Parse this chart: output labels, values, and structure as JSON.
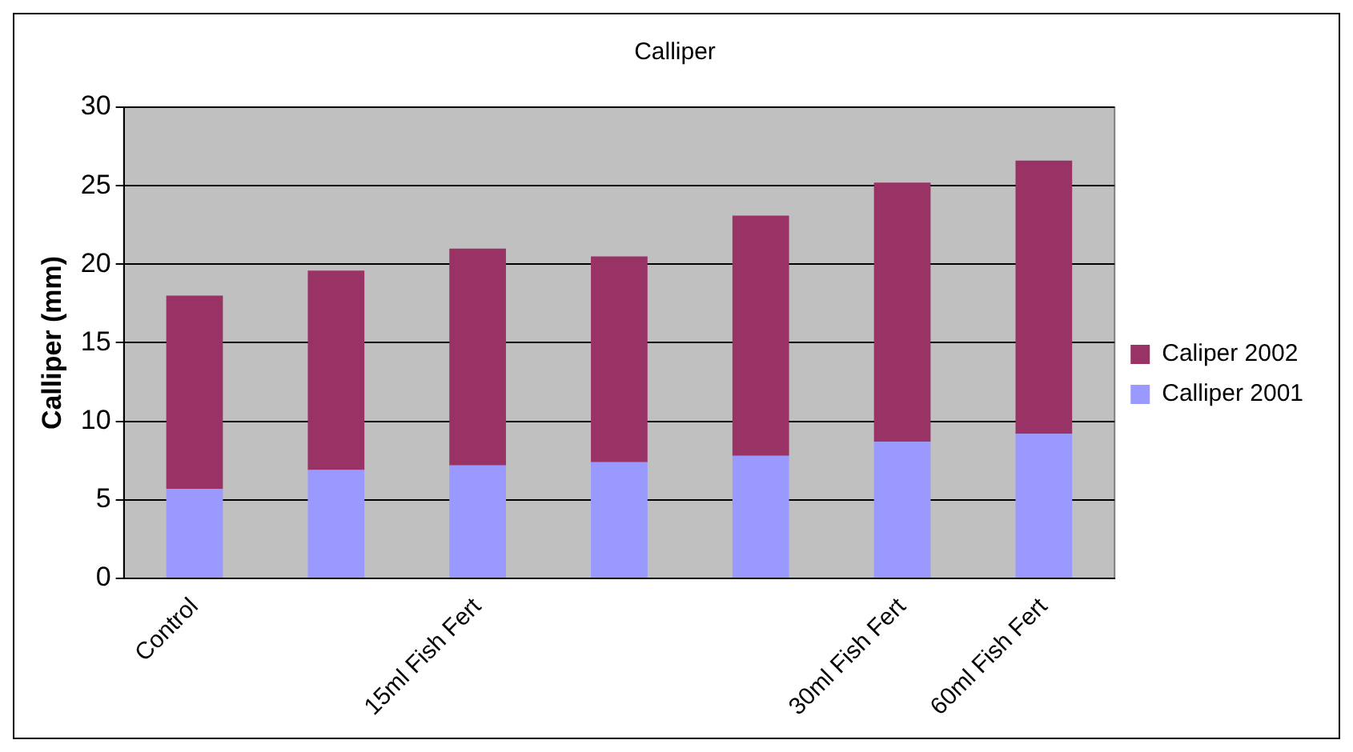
{
  "chart_data": {
    "type": "bar",
    "title": "Calliper",
    "ylabel": "Calliper (mm)",
    "categories": [
      "Control",
      null,
      "15ml Fish Fert",
      null,
      null,
      "30ml Fish Fert",
      "60ml Fish Fert"
    ],
    "series": [
      {
        "name": "Calliper 2001",
        "color": "#9999ff",
        "values": [
          5.7,
          6.9,
          7.2,
          7.4,
          7.8,
          8.7,
          9.2
        ]
      },
      {
        "name": "Caliper 2002",
        "color": "#993366",
        "values": [
          12.3,
          12.7,
          13.8,
          13.1,
          15.3,
          16.5,
          17.4
        ]
      }
    ],
    "stacked": true,
    "ylim": [
      0,
      30
    ],
    "yticks": [
      0,
      5,
      10,
      15,
      20,
      25,
      30
    ],
    "grid": "y",
    "legend": "right"
  }
}
